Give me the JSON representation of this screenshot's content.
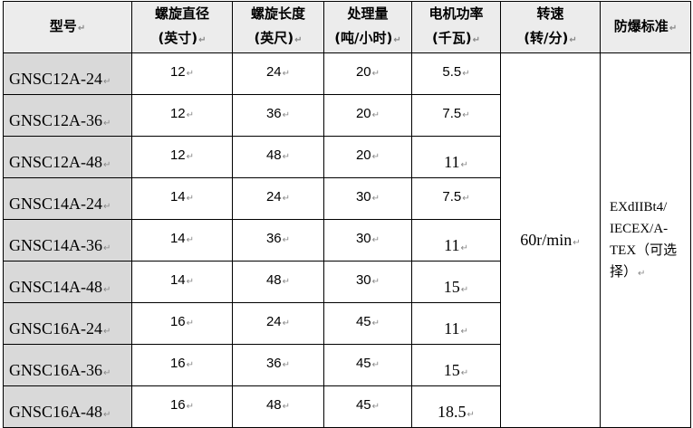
{
  "headers": [
    {
      "line1": "型号",
      "line2": ""
    },
    {
      "line1": "螺旋直径",
      "line2": "(英寸)"
    },
    {
      "line1": "螺旋长度",
      "line2": "(英尺)"
    },
    {
      "line1": "处理量",
      "line2": "(吨/小时)"
    },
    {
      "line1": "电机功率",
      "line2": "(千瓦)"
    },
    {
      "line1": "转速",
      "line2": "(转/分)"
    },
    {
      "line1": "防爆标准",
      "line2": ""
    }
  ],
  "rows": [
    {
      "model": "GNSC12A-24",
      "diameter": "12",
      "length": "24",
      "capacity": "20",
      "power": "5.5"
    },
    {
      "model": "GNSC12A-36",
      "diameter": "12",
      "length": "36",
      "capacity": "20",
      "power": "7.5"
    },
    {
      "model": "GNSC12A-48",
      "diameter": "12",
      "length": "48",
      "capacity": "20",
      "power": "11"
    },
    {
      "model": "GNSC14A-24",
      "diameter": "14",
      "length": "24",
      "capacity": "30",
      "power": "7.5"
    },
    {
      "model": "GNSC14A-36",
      "diameter": "14",
      "length": "36",
      "capacity": "30",
      "power": "11"
    },
    {
      "model": "GNSC14A-48",
      "diameter": "14",
      "length": "48",
      "capacity": "30",
      "power": "15"
    },
    {
      "model": "GNSC16A-24",
      "diameter": "16",
      "length": "24",
      "capacity": "45",
      "power": "11"
    },
    {
      "model": "GNSC16A-36",
      "diameter": "16",
      "length": "36",
      "capacity": "45",
      "power": "15"
    },
    {
      "model": "GNSC16A-48",
      "diameter": "16",
      "length": "48",
      "capacity": "45",
      "power": "18.5"
    }
  ],
  "speed": "60r/min",
  "explosion_standard": [
    "EXdIIBt4/",
    "IECEX/A-",
    "TEX（可选",
    "择）"
  ]
}
